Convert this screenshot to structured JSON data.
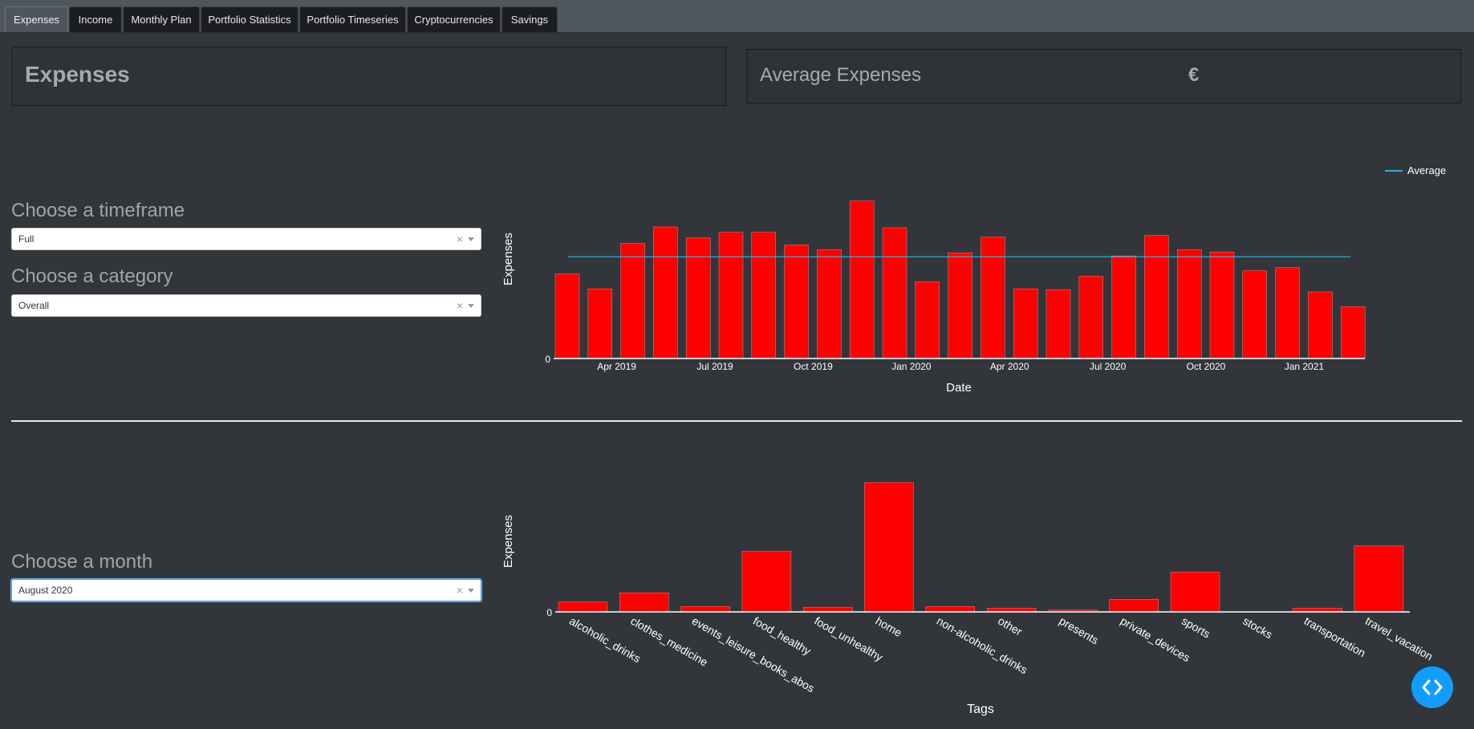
{
  "tabs": [
    "Expenses",
    "Income",
    "Monthly Plan",
    "Portfolio Statistics",
    "Portfolio Timeseries",
    "Cryptocurrencies",
    "Savings"
  ],
  "active_tab": "Expenses",
  "header": {
    "title": "Expenses",
    "avg_label": "Average Expenses",
    "currency": "€"
  },
  "controls": {
    "timeframe_label": "Choose a timeframe",
    "timeframe_value": "Full",
    "category_label": "Choose a category",
    "category_value": "Overall",
    "month_label": "Choose a month",
    "month_value": "August 2020",
    "clear_symbol": "×"
  },
  "colors": {
    "bar": "#ff0000",
    "average_line": "#1fb7e0",
    "background": "#32363b",
    "fab": "#119dff"
  },
  "icons": {
    "fab": "code-brackets-icon",
    "dropdown_arrow": "chevron-down-icon",
    "dropdown_clear": "close-icon"
  },
  "chart_data": [
    {
      "type": "bar",
      "x": [
        "2019-02",
        "2019-03",
        "2019-04",
        "2019-05",
        "2019-06",
        "2019-07",
        "2019-08",
        "2019-09",
        "2019-10",
        "2019-11",
        "2019-12",
        "2020-01",
        "2020-02",
        "2020-03",
        "2020-04",
        "2020-05",
        "2020-06",
        "2020-07",
        "2020-08",
        "2020-09",
        "2020-10",
        "2020-11",
        "2020-12",
        "2021-01",
        "2021-02"
      ],
      "values": [
        108,
        89,
        147,
        168,
        154,
        161,
        161,
        145,
        139,
        201,
        167,
        98,
        135,
        155,
        89,
        88,
        105,
        131,
        157,
        139,
        136,
        112,
        116,
        85,
        66
      ],
      "average": 130,
      "xlabel": "Date",
      "ylabel": "Expenses",
      "xtick_labels": [
        "Apr 2019",
        "Jul 2019",
        "Oct 2019",
        "Jan 2020",
        "Apr 2020",
        "Jul 2020",
        "Oct 2020",
        "Jan 2021"
      ],
      "ytick_labels": [
        "0"
      ],
      "ylim": [
        0,
        210
      ],
      "legend": [
        "Average"
      ],
      "legend_position": "top-right"
    },
    {
      "type": "bar",
      "categories": [
        "alcoholic_drinks",
        "clothes_medicine",
        "events_leisure_books_abos",
        "food_healthy",
        "food_unhealthy",
        "home",
        "non-alcoholic_drinks",
        "other",
        "presents",
        "private_devices",
        "sports",
        "stocks",
        "transportation",
        "travel_vacation"
      ],
      "values": [
        11,
        21,
        6,
        67,
        5,
        143,
        6,
        4,
        2,
        14,
        44,
        0,
        4,
        73
      ],
      "xlabel": "Tags",
      "ylabel": "Expenses",
      "ytick_labels": [
        "0"
      ],
      "ylim": [
        0,
        150
      ]
    }
  ]
}
